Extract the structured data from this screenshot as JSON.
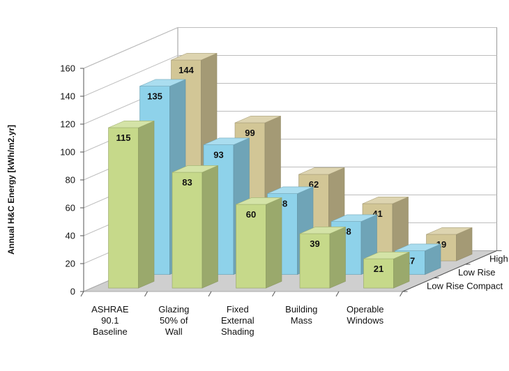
{
  "chart_data": {
    "type": "bar",
    "subtype": "3d-clustered-depth",
    "title": "",
    "ylabel": "Annual H&C Energy [kWh/m2.yr]",
    "xlabel": "",
    "ylim": [
      0,
      160
    ],
    "yticks": [
      0,
      20,
      40,
      60,
      80,
      100,
      120,
      140,
      160
    ],
    "categories": [
      [
        "ASHRAE",
        "90.1",
        "Baseline"
      ],
      [
        "Glazing",
        "50% of",
        "Wall"
      ],
      [
        "Fixed",
        "External",
        "Shading"
      ],
      [
        "Building",
        "Mass"
      ],
      [
        "Operable",
        "Windows"
      ]
    ],
    "series": [
      {
        "name": "Low Rise Compact",
        "color": "#c6d98a",
        "values": [
          115,
          83,
          60,
          39,
          21
        ]
      },
      {
        "name": "Low Rise",
        "color": "#8ed2ea",
        "values": [
          135,
          93,
          58,
          38,
          17
        ]
      },
      {
        "name": "High Rise",
        "color": "#d2c696",
        "values": [
          144,
          99,
          62,
          41,
          19
        ]
      }
    ],
    "grid": true,
    "data_labels": true
  }
}
